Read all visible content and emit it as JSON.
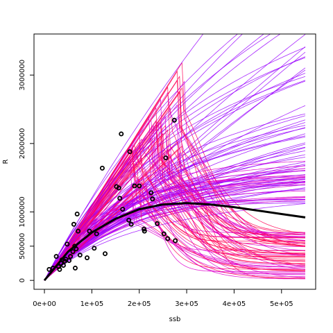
{
  "chart_data": {
    "type": "scatter",
    "title": "",
    "xlabel": "ssb",
    "ylabel": "R",
    "xlim": [
      -22000,
      572000
    ],
    "ylim": [
      -130000,
      3600000
    ],
    "x_ticks": [
      {
        "value": 0,
        "label": "0e+00"
      },
      {
        "value": 100000,
        "label": "1e+05"
      },
      {
        "value": 200000,
        "label": "2e+05"
      },
      {
        "value": 300000,
        "label": "3e+05"
      },
      {
        "value": 400000,
        "label": "4e+05"
      },
      {
        "value": 500000,
        "label": "5e+05"
      }
    ],
    "y_ticks": [
      {
        "value": 0,
        "label": "0"
      },
      {
        "value": 500000,
        "label": "500000"
      },
      {
        "value": 1000000,
        "label": "1000000"
      },
      {
        "value": 2000000,
        "label": "2000000"
      },
      {
        "value": 3000000,
        "label": "3000000"
      }
    ],
    "grid": false,
    "colors": {
      "fit": "#000000",
      "points": "#000000",
      "curve_purple": "#9900ff",
      "curve_magenta": "#dd00cc",
      "curve_red": "#ff0055"
    },
    "points": [
      [
        10000,
        160000
      ],
      [
        18000,
        180000
      ],
      [
        25000,
        350000
      ],
      [
        30000,
        200000
      ],
      [
        32000,
        160000
      ],
      [
        35000,
        250000
      ],
      [
        37000,
        300000
      ],
      [
        40000,
        220000
      ],
      [
        43000,
        280000
      ],
      [
        45000,
        310000
      ],
      [
        48000,
        530000
      ],
      [
        52000,
        290000
      ],
      [
        55000,
        350000
      ],
      [
        60000,
        420000
      ],
      [
        62000,
        820000
      ],
      [
        64000,
        500000
      ],
      [
        65000,
        180000
      ],
      [
        67000,
        460000
      ],
      [
        69000,
        970000
      ],
      [
        71000,
        720000
      ],
      [
        75000,
        370000
      ],
      [
        90000,
        330000
      ],
      [
        95000,
        720000
      ],
      [
        105000,
        470000
      ],
      [
        110000,
        680000
      ],
      [
        122000,
        1640000
      ],
      [
        128000,
        390000
      ],
      [
        152000,
        1370000
      ],
      [
        157000,
        1350000
      ],
      [
        159000,
        1200000
      ],
      [
        162000,
        2140000
      ],
      [
        165000,
        1040000
      ],
      [
        178000,
        880000
      ],
      [
        180000,
        1880000
      ],
      [
        183000,
        820000
      ],
      [
        190000,
        1380000
      ],
      [
        200000,
        1380000
      ],
      [
        210000,
        750000
      ],
      [
        211000,
        720000
      ],
      [
        225000,
        1280000
      ],
      [
        228000,
        1190000
      ],
      [
        238000,
        830000
      ],
      [
        252000,
        680000
      ],
      [
        256000,
        1790000
      ],
      [
        260000,
        610000
      ],
      [
        274000,
        2340000
      ],
      [
        276000,
        580000
      ]
    ],
    "fit_line": {
      "type": "ricker",
      "points": [
        [
          0,
          0
        ],
        [
          50000,
          420000
        ],
        [
          100000,
          700000
        ],
        [
          150000,
          900000
        ],
        [
          200000,
          1040000
        ],
        [
          250000,
          1110000
        ],
        [
          300000,
          1130000
        ],
        [
          350000,
          1110000
        ],
        [
          400000,
          1070000
        ],
        [
          450000,
          1020000
        ],
        [
          500000,
          970000
        ],
        [
          550000,
          920000
        ]
      ]
    },
    "ensemble": {
      "count": 150,
      "end_range": [
        0,
        3480000
      ]
    }
  }
}
